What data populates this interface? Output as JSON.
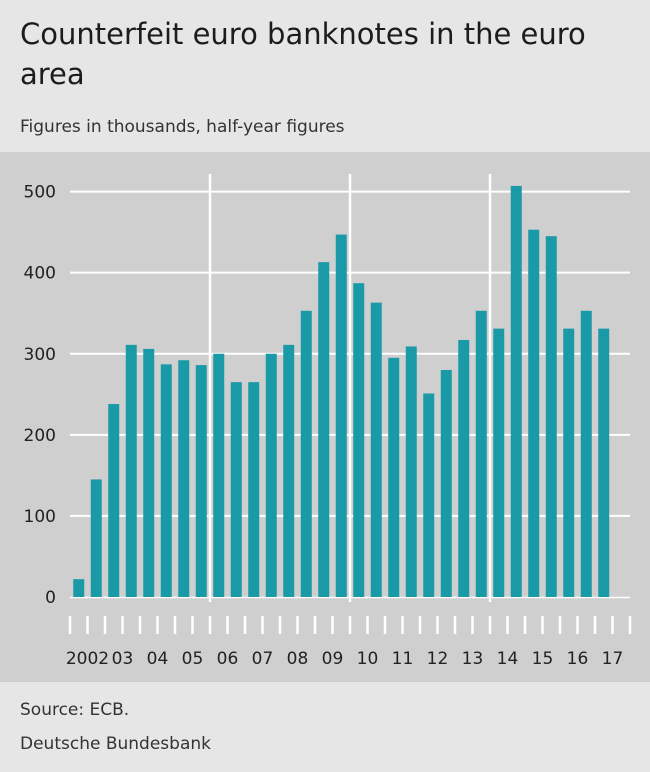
{
  "title": "Counterfeit euro banknotes in the euro area",
  "subtitle": "Figures in thousands, half-year figures",
  "source": "Source: ECB.",
  "publisher": "Deutsche Bundesbank",
  "colors": {
    "bar": "#1a9aa6",
    "panel": "#cfcfcf",
    "page": "#e6e6e6",
    "grid": "#ffffff",
    "text": "#222222"
  },
  "chart_data": {
    "type": "bar",
    "xlabel": "",
    "ylabel": "",
    "ylim": [
      0,
      520
    ],
    "yticks": [
      0,
      100,
      200,
      300,
      400,
      500
    ],
    "grid": true,
    "year_labels": [
      "2002",
      "03",
      "04",
      "05",
      "06",
      "07",
      "08",
      "09",
      "10",
      "11",
      "12",
      "13",
      "14",
      "15",
      "16",
      "17"
    ],
    "categories": [
      "2002 H1",
      "2002 H2",
      "2003 H1",
      "2003 H2",
      "2004 H1",
      "2004 H2",
      "2005 H1",
      "2005 H2",
      "2006 H1",
      "2006 H2",
      "2007 H1",
      "2007 H2",
      "2008 H1",
      "2008 H2",
      "2009 H1",
      "2009 H2",
      "2010 H1",
      "2010 H2",
      "2011 H1",
      "2011 H2",
      "2012 H1",
      "2012 H2",
      "2013 H1",
      "2013 H2",
      "2014 H1",
      "2014 H2",
      "2015 H1",
      "2015 H2",
      "2016 H1",
      "2016 H2",
      "2017 H1",
      "2017 H2"
    ],
    "values": [
      22,
      145,
      238,
      311,
      306,
      287,
      292,
      286,
      300,
      265,
      265,
      300,
      311,
      353,
      413,
      447,
      387,
      363,
      295,
      309,
      251,
      280,
      317,
      353,
      331,
      507,
      453,
      445,
      331,
      353,
      331,
      null
    ],
    "vertical_gridlines_after_year": [
      "05",
      "09",
      "13"
    ]
  }
}
